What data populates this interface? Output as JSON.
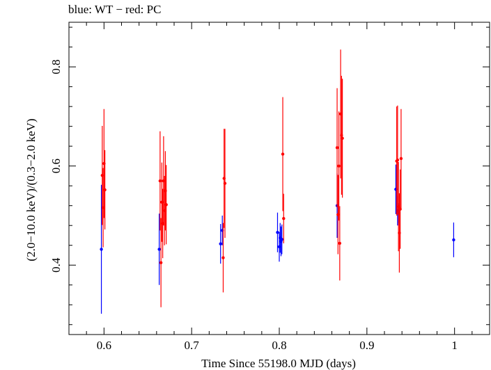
{
  "chart_data": {
    "type": "scatter",
    "title": "blue: WT − red: PC",
    "title_parts": {
      "blue_label": "blue: WT",
      "separator": "−",
      "red_label": "red: PC"
    },
    "xlabel": "Time Since 55198.0 MJD (days)",
    "ylabel": "(2.0−10.0 keV)/(0.3−2.0 keV)",
    "xlim": [
      0.56,
      1.04
    ],
    "ylim": [
      0.26,
      0.89
    ],
    "x_ticks": [
      0.6,
      0.7,
      0.8,
      0.9,
      1.0
    ],
    "x_tick_labels": [
      "0.6",
      "0.7",
      "0.8",
      "0.9",
      "1"
    ],
    "y_ticks": [
      0.4,
      0.6,
      0.8
    ],
    "y_tick_labels": [
      "0.4",
      "0.6",
      "0.8"
    ],
    "grid": false,
    "series": [
      {
        "name": "WT",
        "color": "#0000ff",
        "points": [
          {
            "x": 0.597,
            "y": 0.432,
            "err": 0.13
          },
          {
            "x": 0.663,
            "y": 0.432,
            "err": 0.072
          },
          {
            "x": 0.733,
            "y": 0.443,
            "err": 0.04
          },
          {
            "x": 0.735,
            "y": 0.47,
            "err": 0.03
          },
          {
            "x": 0.798,
            "y": 0.466,
            "err": 0.04
          },
          {
            "x": 0.8,
            "y": 0.437,
            "err": 0.03
          },
          {
            "x": 0.801,
            "y": 0.455,
            "err": 0.03
          },
          {
            "x": 0.802,
            "y": 0.448,
            "err": 0.03
          },
          {
            "x": 0.803,
            "y": 0.452,
            "err": 0.03
          },
          {
            "x": 0.866,
            "y": 0.52,
            "err": 0.065
          },
          {
            "x": 0.933,
            "y": 0.553,
            "err": 0.05
          },
          {
            "x": 0.935,
            "y": 0.51,
            "err": 0.03
          },
          {
            "x": 0.936,
            "y": 0.505,
            "err": 0.02
          },
          {
            "x": 0.999,
            "y": 0.451,
            "err": 0.035
          }
        ]
      },
      {
        "name": "PC",
        "color": "#ff0000",
        "points": [
          {
            "x": 0.598,
            "y": 0.581,
            "err": 0.1
          },
          {
            "x": 0.599,
            "y": 0.516,
            "err": 0.08
          },
          {
            "x": 0.6,
            "y": 0.605,
            "err": 0.11
          },
          {
            "x": 0.601,
            "y": 0.552,
            "err": 0.08
          },
          {
            "x": 0.664,
            "y": 0.57,
            "err": 0.1
          },
          {
            "x": 0.665,
            "y": 0.405,
            "err": 0.09
          },
          {
            "x": 0.666,
            "y": 0.527,
            "err": 0.08
          },
          {
            "x": 0.667,
            "y": 0.484,
            "err": 0.07
          },
          {
            "x": 0.668,
            "y": 0.57,
            "err": 0.09
          },
          {
            "x": 0.669,
            "y": 0.51,
            "err": 0.07
          },
          {
            "x": 0.67,
            "y": 0.55,
            "err": 0.08
          },
          {
            "x": 0.671,
            "y": 0.522,
            "err": 0.08
          },
          {
            "x": 0.736,
            "y": 0.415,
            "err": 0.07
          },
          {
            "x": 0.737,
            "y": 0.575,
            "err": 0.1
          },
          {
            "x": 0.738,
            "y": 0.565,
            "err": 0.11
          },
          {
            "x": 0.804,
            "y": 0.624,
            "err": 0.115
          },
          {
            "x": 0.805,
            "y": 0.494,
            "err": 0.05
          },
          {
            "x": 0.866,
            "y": 0.637,
            "err": 0.12
          },
          {
            "x": 0.867,
            "y": 0.502,
            "err": 0.08
          },
          {
            "x": 0.868,
            "y": 0.6,
            "err": 0.11
          },
          {
            "x": 0.869,
            "y": 0.444,
            "err": 0.075
          },
          {
            "x": 0.87,
            "y": 0.705,
            "err": 0.13
          },
          {
            "x": 0.871,
            "y": 0.662,
            "err": 0.12
          },
          {
            "x": 0.872,
            "y": 0.656,
            "err": 0.12
          },
          {
            "x": 0.934,
            "y": 0.61,
            "err": 0.11
          },
          {
            "x": 0.935,
            "y": 0.612,
            "err": 0.11
          },
          {
            "x": 0.936,
            "y": 0.518,
            "err": 0.09
          },
          {
            "x": 0.937,
            "y": 0.465,
            "err": 0.08
          },
          {
            "x": 0.938,
            "y": 0.513,
            "err": 0.08
          },
          {
            "x": 0.939,
            "y": 0.615,
            "err": 0.1
          }
        ]
      }
    ]
  }
}
